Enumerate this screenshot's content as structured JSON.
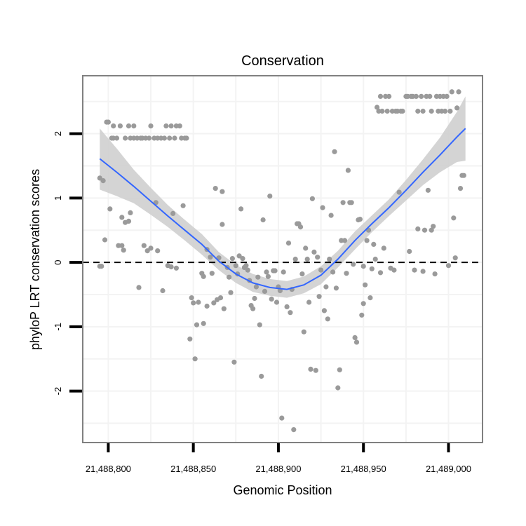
{
  "chart_data": {
    "type": "scatter",
    "title": "Conservation",
    "xlabel": "Genomic Position",
    "ylabel": "phyloP LRT conservation scores",
    "xlim": [
      21488785,
      21489020
    ],
    "ylim": [
      -2.8,
      2.9
    ],
    "x_ticks": [
      21488800,
      21488850,
      21488900,
      21488950,
      21489000
    ],
    "x_tick_labels": [
      "21,488,800",
      "21,488,850",
      "21,488,900",
      "21,488,950",
      "21,489,000"
    ],
    "y_ticks": [
      -2,
      -1,
      0,
      1,
      2
    ],
    "y_tick_labels": [
      "-2",
      "-1",
      "0",
      "1",
      "2"
    ],
    "reference_line": {
      "y": 0,
      "style": "dashed"
    },
    "colors": {
      "points": "#9a9a9a",
      "smooth": "#3366ff",
      "band": "#cccccc",
      "grid": "#f3f3f3",
      "frame": "#808080"
    },
    "series": [
      {
        "name": "scores",
        "points": [
          [
            21488795,
            1.31
          ],
          [
            21488795,
            -0.06
          ],
          [
            21488796,
            -0.06
          ],
          [
            21488797,
            1.27
          ],
          [
            21488798,
            0.35
          ],
          [
            21488799,
            2.18
          ],
          [
            21488800,
            2.18
          ],
          [
            21488801,
            0.83
          ],
          [
            21488802,
            1.93
          ],
          [
            21488803,
            1.93
          ],
          [
            21488803,
            2.12
          ],
          [
            21488805,
            1.93
          ],
          [
            21488806,
            0.26
          ],
          [
            21488807,
            2.12
          ],
          [
            21488808,
            0.26
          ],
          [
            21488808,
            0.7
          ],
          [
            21488809,
            0.19
          ],
          [
            21488810,
            0.62
          ],
          [
            21488810,
            1.93
          ],
          [
            21488812,
            2.12
          ],
          [
            21488812,
            0.64
          ],
          [
            21488813,
            0.77
          ],
          [
            21488813,
            1.93
          ],
          [
            21488815,
            1.93
          ],
          [
            21488815,
            2.12
          ],
          [
            21488817,
            1.93
          ],
          [
            21488818,
            -0.39
          ],
          [
            21488819,
            1.93
          ],
          [
            21488820,
            1.93
          ],
          [
            21488821,
            0.26
          ],
          [
            21488822,
            1.93
          ],
          [
            21488823,
            0.18
          ],
          [
            21488824,
            1.93
          ],
          [
            21488825,
            2.12
          ],
          [
            21488825,
            0.22
          ],
          [
            21488827,
            1.93
          ],
          [
            21488828,
            0.93
          ],
          [
            21488829,
            1.93
          ],
          [
            21488829,
            0.18
          ],
          [
            21488831,
            1.93
          ],
          [
            21488832,
            -0.44
          ],
          [
            21488833,
            1.93
          ],
          [
            21488834,
            2.12
          ],
          [
            21488835,
            -0.05
          ],
          [
            21488836,
            1.93
          ],
          [
            21488837,
            2.12
          ],
          [
            21488837,
            -0.07
          ],
          [
            21488838,
            0.76
          ],
          [
            21488839,
            1.93
          ],
          [
            21488840,
            2.12
          ],
          [
            21488840,
            -0.09
          ],
          [
            21488842,
            2.12
          ],
          [
            21488843,
            1.93
          ],
          [
            21488844,
            0.88
          ],
          [
            21488845,
            1.93
          ],
          [
            21488846,
            1.93
          ],
          [
            21488848,
            -1.19
          ],
          [
            21488849,
            -0.55
          ],
          [
            21488850,
            -0.63
          ],
          [
            21488851,
            -1.5
          ],
          [
            21488852,
            -0.97
          ],
          [
            21488853,
            -0.62
          ],
          [
            21488855,
            -0.17
          ],
          [
            21488856,
            -0.22
          ],
          [
            21488856,
            -0.95
          ],
          [
            21488858,
            0.2
          ],
          [
            21488858,
            -0.68
          ],
          [
            21488860,
            0.08
          ],
          [
            21488861,
            -0.17
          ],
          [
            21488862,
            -0.63
          ],
          [
            21488863,
            1.15
          ],
          [
            21488864,
            -0.58
          ],
          [
            21488865,
            0.07
          ],
          [
            21488866,
            -0.55
          ],
          [
            21488867,
            1.1
          ],
          [
            21488867,
            0.59
          ],
          [
            21488868,
            -0.72
          ],
          [
            21488870,
            -0.08
          ],
          [
            21488871,
            -0.23
          ],
          [
            21488872,
            -0.47
          ],
          [
            21488873,
            0.06
          ],
          [
            21488874,
            -1.55
          ],
          [
            21488875,
            -0.05
          ],
          [
            21488876,
            -0.18
          ],
          [
            21488877,
            0.1
          ],
          [
            21488878,
            0.83
          ],
          [
            21488879,
            0.06
          ],
          [
            21488880,
            -0.08
          ],
          [
            21488881,
            -0.05
          ],
          [
            21488882,
            -0.12
          ],
          [
            21488883,
            -0.28
          ],
          [
            21488884,
            -0.67
          ],
          [
            21488885,
            -0.72
          ],
          [
            21488886,
            -0.56
          ],
          [
            21488887,
            -0.38
          ],
          [
            21488888,
            -0.23
          ],
          [
            21488889,
            -0.97
          ],
          [
            21488890,
            -1.77
          ],
          [
            21488891,
            0.66
          ],
          [
            21488892,
            -0.45
          ],
          [
            21488893,
            -0.15
          ],
          [
            21488894,
            -0.22
          ],
          [
            21488895,
            1.03
          ],
          [
            21488896,
            -0.57
          ],
          [
            21488897,
            -0.13
          ],
          [
            21488898,
            -0.13
          ],
          [
            21488899,
            -0.62
          ],
          [
            21488900,
            -0.38
          ],
          [
            21488901,
            -0.44
          ],
          [
            21488902,
            -2.42
          ],
          [
            21488903,
            -0.15
          ],
          [
            21488905,
            -0.69
          ],
          [
            21488906,
            0.3
          ],
          [
            21488907,
            -0.78
          ],
          [
            21488908,
            -0.42
          ],
          [
            21488909,
            -2.6
          ],
          [
            21488910,
            0.05
          ],
          [
            21488911,
            0.6
          ],
          [
            21488912,
            0.6
          ],
          [
            21488913,
            0.55
          ],
          [
            21488914,
            -0.18
          ],
          [
            21488915,
            -1.08
          ],
          [
            21488916,
            0.22
          ],
          [
            21488917,
            0.05
          ],
          [
            21488918,
            -0.62
          ],
          [
            21488919,
            -1.66
          ],
          [
            21488920,
            0.99
          ],
          [
            21488921,
            0.16
          ],
          [
            21488922,
            -1.68
          ],
          [
            21488923,
            0.08
          ],
          [
            21488924,
            -0.53
          ],
          [
            21488925,
            -0.12
          ],
          [
            21488926,
            0.85
          ],
          [
            21488927,
            -0.75
          ],
          [
            21488928,
            -0.38
          ],
          [
            21488929,
            -0.88
          ],
          [
            21488930,
            0.05
          ],
          [
            21488931,
            0.73
          ],
          [
            21488932,
            -0.15
          ],
          [
            21488933,
            1.72
          ],
          [
            21488934,
            -0.4
          ],
          [
            21488935,
            -1.95
          ],
          [
            21488936,
            -1.67
          ],
          [
            21488937,
            0.34
          ],
          [
            21488938,
            0.93
          ],
          [
            21488939,
            0.34
          ],
          [
            21488940,
            -0.17
          ],
          [
            21488941,
            1.43
          ],
          [
            21488942,
            0.93
          ],
          [
            21488943,
            0.93
          ],
          [
            21488944,
            -0.03
          ],
          [
            21488945,
            -1.17
          ],
          [
            21488946,
            -1.24
          ],
          [
            21488947,
            0.66
          ],
          [
            21488948,
            0.67
          ],
          [
            21488949,
            -0.82
          ],
          [
            21488950,
            -0.64
          ],
          [
            21488950,
            -0.06
          ],
          [
            21488951,
            -0.35
          ],
          [
            21488952,
            0.34
          ],
          [
            21488953,
            0.5
          ],
          [
            21488954,
            -0.55
          ],
          [
            21488955,
            -0.1
          ],
          [
            21488956,
            0.28
          ],
          [
            21488957,
            0.05
          ],
          [
            21488958,
            2.41
          ],
          [
            21488959,
            2.35
          ],
          [
            21488960,
            2.58
          ],
          [
            21488960,
            -0.16
          ],
          [
            21488961,
            2.35
          ],
          [
            21488962,
            0.22
          ],
          [
            21488963,
            2.58
          ],
          [
            21488964,
            2.35
          ],
          [
            21488965,
            2.58
          ],
          [
            21488966,
            -0.09
          ],
          [
            21488967,
            2.35
          ],
          [
            21488968,
            -0.12
          ],
          [
            21488969,
            2.35
          ],
          [
            21488970,
            2.35
          ],
          [
            21488971,
            1.09
          ],
          [
            21488972,
            2.35
          ],
          [
            21488973,
            2.35
          ],
          [
            21488975,
            2.58
          ],
          [
            21488976,
            2.58
          ],
          [
            21488977,
            0.17
          ],
          [
            21488978,
            2.58
          ],
          [
            21488979,
            2.58
          ],
          [
            21488980,
            -0.12
          ],
          [
            21488981,
            2.58
          ],
          [
            21488982,
            0.52
          ],
          [
            21488982,
            2.35
          ],
          [
            21488984,
            2.58
          ],
          [
            21488985,
            2.35
          ],
          [
            21488985,
            -0.14
          ],
          [
            21488986,
            0.5
          ],
          [
            21488987,
            2.58
          ],
          [
            21488988,
            1.12
          ],
          [
            21488989,
            2.58
          ],
          [
            21488990,
            0.5
          ],
          [
            21488990,
            2.35
          ],
          [
            21488991,
            0.56
          ],
          [
            21488992,
            -0.18
          ],
          [
            21488993,
            2.58
          ],
          [
            21488994,
            2.35
          ],
          [
            21488995,
            2.58
          ],
          [
            21488996,
            2.35
          ],
          [
            21488997,
            2.58
          ],
          [
            21488998,
            2.35
          ],
          [
            21488999,
            2.58
          ],
          [
            21489000,
            -0.05
          ],
          [
            21489001,
            2.35
          ],
          [
            21489002,
            2.65
          ],
          [
            21489003,
            0.69
          ],
          [
            21489004,
            0.07
          ],
          [
            21489005,
            2.4
          ],
          [
            21489006,
            2.65
          ],
          [
            21489007,
            1.15
          ],
          [
            21489008,
            1.35
          ],
          [
            21489009,
            1.35
          ]
        ]
      }
    ],
    "smooth": {
      "x": [
        21488795,
        21488805,
        21488815,
        21488825,
        21488835,
        21488845,
        21488855,
        21488865,
        21488875,
        21488885,
        21488895,
        21488905,
        21488915,
        21488925,
        21488935,
        21488945,
        21488955,
        21488965,
        21488975,
        21488985,
        21488995,
        21489005,
        21489010
      ],
      "y": [
        1.61,
        1.4,
        1.18,
        0.95,
        0.72,
        0.5,
        0.28,
        0.02,
        -0.18,
        -0.32,
        -0.39,
        -0.42,
        -0.35,
        -0.2,
        0.05,
        0.34,
        0.6,
        0.85,
        1.12,
        1.4,
        1.67,
        1.95,
        2.08
      ],
      "lower": [
        1.13,
        1.03,
        0.92,
        0.74,
        0.55,
        0.34,
        0.12,
        -0.12,
        -0.32,
        -0.46,
        -0.52,
        -0.55,
        -0.48,
        -0.34,
        -0.08,
        0.2,
        0.47,
        0.72,
        0.96,
        1.2,
        1.4,
        1.56,
        1.58
      ],
      "upper": [
        2.08,
        1.77,
        1.44,
        1.16,
        0.89,
        0.66,
        0.44,
        0.16,
        -0.04,
        -0.18,
        -0.26,
        -0.29,
        -0.22,
        -0.06,
        0.18,
        0.48,
        0.73,
        0.98,
        1.28,
        1.6,
        1.94,
        2.34,
        2.58
      ]
    }
  }
}
